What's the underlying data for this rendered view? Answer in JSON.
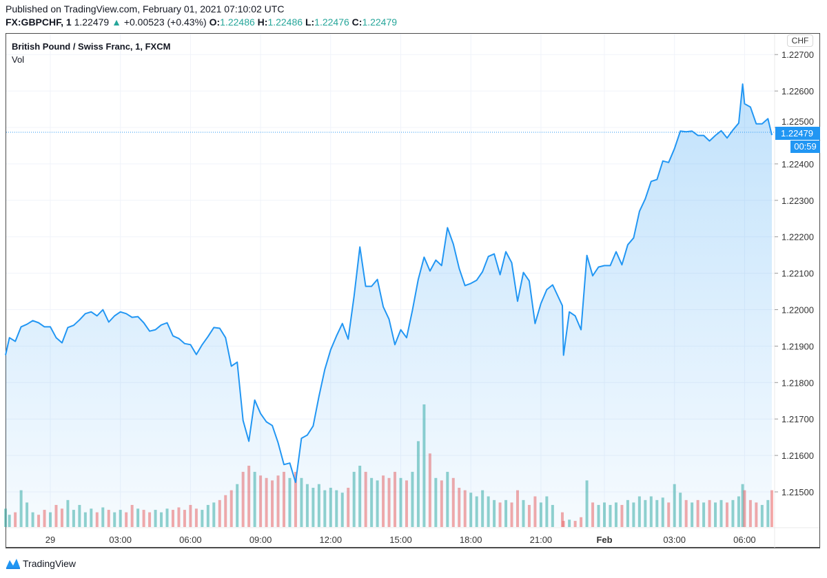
{
  "header": {
    "published": "Published on TradingView.com, February 01, 2021 07:10:02 UTC",
    "symbol": "FX:GBPCHF, 1",
    "last": "1.22479",
    "change": "+0.00523 (+0.43%)",
    "o_label": "O:",
    "o": "1.22486",
    "h_label": "H:",
    "h": "1.22486",
    "l_label": "L:",
    "l": "1.22476",
    "c_label": "C:",
    "c": "1.22479",
    "up_icon": "triangle-up-icon"
  },
  "legend": {
    "title": "British Pound / Swiss Franc, 1, FXCM",
    "volume": "Vol"
  },
  "price_axis": {
    "currency": "CHF",
    "last_price": "1.22479",
    "countdown": "00:59"
  },
  "branding": {
    "logo_text": "TradingView"
  },
  "colors": {
    "line": "#2196f3",
    "up": "#26a69a",
    "down": "#ef5350",
    "last_price_bg": "#2196f3"
  },
  "chart_data": {
    "type": "area",
    "title": "British Pound / Swiss Franc, 1, FXCM",
    "ylim": [
      1.2143,
      1.2279
    ],
    "grid": true,
    "y_ticks": [
      "1.21500",
      "1.21600",
      "1.21700",
      "1.21800",
      "1.21900",
      "1.22000",
      "1.22100",
      "1.22200",
      "1.22300",
      "1.22400",
      "1.22500",
      "1.22600",
      "1.22700"
    ],
    "x_ticks": [
      {
        "t": "2021-01-29 00:00",
        "label": "29"
      },
      {
        "t": "2021-01-29 03:00",
        "label": "03:00"
      },
      {
        "t": "2021-01-29 06:00",
        "label": "06:00"
      },
      {
        "t": "2021-01-29 09:00",
        "label": "09:00"
      },
      {
        "t": "2021-01-29 12:00",
        "label": "12:00"
      },
      {
        "t": "2021-01-29 15:00",
        "label": "15:00"
      },
      {
        "t": "2021-01-29 18:00",
        "label": "18:00"
      },
      {
        "t": "2021-01-29 21:00",
        "label": "21:00"
      },
      {
        "t": "2021-02-01 00:00",
        "label": "Feb"
      },
      {
        "t": "2021-02-01 03:00",
        "label": "03:00"
      },
      {
        "t": "2021-02-01 06:00",
        "label": "06:00"
      }
    ],
    "series": [
      {
        "points": [
          [
            "2021-01-28 22:05",
            1.21875,
            15
          ],
          [
            "2021-01-28 22:15",
            1.21923,
            10
          ],
          [
            "2021-01-28 22:30",
            1.21913,
            12
          ],
          [
            "2021-01-28 22:45",
            1.21953,
            30
          ],
          [
            "2021-01-28 23:00",
            1.2196,
            20
          ],
          [
            "2021-01-28 23:15",
            1.2197,
            12
          ],
          [
            "2021-01-28 23:30",
            1.21964,
            10
          ],
          [
            "2021-01-28 23:45",
            1.21953,
            14
          ],
          [
            "2021-01-29 00:00",
            1.21953,
            12
          ],
          [
            "2021-01-29 00:15",
            1.21923,
            18
          ],
          [
            "2021-01-29 00:30",
            1.21909,
            15
          ],
          [
            "2021-01-29 00:45",
            1.21951,
            22
          ],
          [
            "2021-01-29 01:00",
            1.21957,
            14
          ],
          [
            "2021-01-29 01:15",
            1.21972,
            18
          ],
          [
            "2021-01-29 01:30",
            1.21989,
            12
          ],
          [
            "2021-01-29 01:45",
            1.21994,
            15
          ],
          [
            "2021-01-29 02:00",
            1.21983,
            12
          ],
          [
            "2021-01-29 02:15",
            1.22,
            16
          ],
          [
            "2021-01-29 02:30",
            1.21966,
            14
          ],
          [
            "2021-01-29 02:45",
            1.21983,
            12
          ],
          [
            "2021-01-29 03:00",
            1.21994,
            14
          ],
          [
            "2021-01-29 03:15",
            1.21989,
            12
          ],
          [
            "2021-01-29 03:30",
            1.21979,
            18
          ],
          [
            "2021-01-29 03:45",
            1.21981,
            15
          ],
          [
            "2021-01-29 04:00",
            1.21964,
            14
          ],
          [
            "2021-01-29 04:15",
            1.21941,
            12
          ],
          [
            "2021-01-29 04:30",
            1.21945,
            14
          ],
          [
            "2021-01-29 04:45",
            1.21958,
            12
          ],
          [
            "2021-01-29 05:00",
            1.21964,
            15
          ],
          [
            "2021-01-29 05:15",
            1.21928,
            14
          ],
          [
            "2021-01-29 05:30",
            1.21921,
            16
          ],
          [
            "2021-01-29 05:45",
            1.21907,
            14
          ],
          [
            "2021-01-29 06:00",
            1.21904,
            18
          ],
          [
            "2021-01-29 06:15",
            1.21877,
            15
          ],
          [
            "2021-01-29 06:30",
            1.21904,
            14
          ],
          [
            "2021-01-29 06:45",
            1.21926,
            18
          ],
          [
            "2021-01-29 07:00",
            1.21951,
            20
          ],
          [
            "2021-01-29 07:15",
            1.21949,
            22
          ],
          [
            "2021-01-29 07:30",
            1.21923,
            26
          ],
          [
            "2021-01-29 07:45",
            1.21845,
            30
          ],
          [
            "2021-01-29 08:00",
            1.21856,
            35
          ],
          [
            "2021-01-29 08:15",
            1.21696,
            45
          ],
          [
            "2021-01-29 08:30",
            1.21639,
            50
          ],
          [
            "2021-01-29 08:45",
            1.21752,
            45
          ],
          [
            "2021-01-29 09:00",
            1.21715,
            42
          ],
          [
            "2021-01-29 09:15",
            1.21692,
            40
          ],
          [
            "2021-01-29 09:30",
            1.21682,
            38
          ],
          [
            "2021-01-29 09:45",
            1.21635,
            42
          ],
          [
            "2021-01-29 10:00",
            1.21575,
            45
          ],
          [
            "2021-01-29 10:15",
            1.21579,
            40
          ],
          [
            "2021-01-29 10:30",
            1.21526,
            45
          ],
          [
            "2021-01-29 10:45",
            1.21647,
            40
          ],
          [
            "2021-01-29 11:00",
            1.21656,
            35
          ],
          [
            "2021-01-29 11:15",
            1.21681,
            32
          ],
          [
            "2021-01-29 11:30",
            1.21762,
            35
          ],
          [
            "2021-01-29 11:45",
            1.21836,
            30
          ],
          [
            "2021-01-29 12:00",
            1.2189,
            32
          ],
          [
            "2021-01-29 12:15",
            1.21928,
            30
          ],
          [
            "2021-01-29 12:30",
            1.21962,
            28
          ],
          [
            "2021-01-29 12:45",
            1.21919,
            32
          ],
          [
            "2021-01-29 13:00",
            1.22036,
            45
          ],
          [
            "2021-01-29 13:15",
            1.22172,
            50
          ],
          [
            "2021-01-29 13:30",
            1.22064,
            45
          ],
          [
            "2021-01-29 13:45",
            1.22064,
            40
          ],
          [
            "2021-01-29 14:00",
            1.22083,
            38
          ],
          [
            "2021-01-29 14:15",
            1.22008,
            42
          ],
          [
            "2021-01-29 14:30",
            1.21974,
            40
          ],
          [
            "2021-01-29 14:45",
            1.21904,
            45
          ],
          [
            "2021-01-29 15:00",
            1.21945,
            40
          ],
          [
            "2021-01-29 15:15",
            1.21923,
            38
          ],
          [
            "2021-01-29 15:30",
            1.21998,
            45
          ],
          [
            "2021-01-29 15:45",
            1.22083,
            70
          ],
          [
            "2021-01-29 16:00",
            1.22144,
            100
          ],
          [
            "2021-01-29 16:15",
            1.22106,
            60
          ],
          [
            "2021-01-29 16:30",
            1.22136,
            40
          ],
          [
            "2021-01-29 16:45",
            1.22121,
            38
          ],
          [
            "2021-01-29 17:00",
            1.22225,
            45
          ],
          [
            "2021-01-29 17:15",
            1.2218,
            40
          ],
          [
            "2021-01-29 17:30",
            1.22113,
            32
          ],
          [
            "2021-01-29 17:45",
            1.22066,
            30
          ],
          [
            "2021-01-29 18:00",
            1.22072,
            28
          ],
          [
            "2021-01-29 18:15",
            1.22081,
            25
          ],
          [
            "2021-01-29 18:30",
            1.22104,
            30
          ],
          [
            "2021-01-29 18:45",
            1.22146,
            25
          ],
          [
            "2021-01-29 19:00",
            1.22153,
            22
          ],
          [
            "2021-01-29 19:15",
            1.22096,
            20
          ],
          [
            "2021-01-29 19:30",
            1.22159,
            22
          ],
          [
            "2021-01-29 19:45",
            1.22129,
            20
          ],
          [
            "2021-01-29 20:00",
            1.22023,
            30
          ],
          [
            "2021-01-29 20:15",
            1.22102,
            22
          ],
          [
            "2021-01-29 20:30",
            1.22079,
            18
          ],
          [
            "2021-01-29 20:45",
            1.21962,
            25
          ],
          [
            "2021-01-29 21:00",
            1.22017,
            20
          ],
          [
            "2021-01-29 21:15",
            1.22055,
            25
          ],
          [
            "2021-01-29 21:30",
            1.22068,
            18
          ],
          [
            "2021-01-29 21:55",
            1.22011,
            12
          ],
          [
            "2021-01-31 22:15",
            1.21875,
            5
          ],
          [
            "2021-01-31 22:30",
            1.21994,
            6
          ],
          [
            "2021-01-31 22:45",
            1.21983,
            5
          ],
          [
            "2021-01-31 23:00",
            1.21945,
            8
          ],
          [
            "2021-01-31 23:15",
            1.22149,
            38
          ],
          [
            "2021-01-31 23:30",
            1.22093,
            20
          ],
          [
            "2021-01-31 23:45",
            1.22117,
            18
          ],
          [
            "2021-02-01 00:00",
            1.22121,
            20
          ],
          [
            "2021-02-01 00:15",
            1.22121,
            18
          ],
          [
            "2021-02-01 00:30",
            1.22159,
            20
          ],
          [
            "2021-02-01 00:45",
            1.22123,
            18
          ],
          [
            "2021-02-01 01:00",
            1.22178,
            22
          ],
          [
            "2021-02-01 01:15",
            1.22197,
            20
          ],
          [
            "2021-02-01 01:30",
            1.2227,
            25
          ],
          [
            "2021-02-01 01:45",
            1.22304,
            22
          ],
          [
            "2021-02-01 02:00",
            1.22352,
            25
          ],
          [
            "2021-02-01 02:15",
            1.22357,
            22
          ],
          [
            "2021-02-01 02:30",
            1.22408,
            24
          ],
          [
            "2021-02-01 02:45",
            1.22404,
            20
          ],
          [
            "2021-02-01 03:00",
            1.22442,
            35
          ],
          [
            "2021-02-01 03:15",
            1.2249,
            28
          ],
          [
            "2021-02-01 03:30",
            1.22488,
            22
          ],
          [
            "2021-02-01 03:45",
            1.2249,
            20
          ],
          [
            "2021-02-01 04:00",
            1.22478,
            22
          ],
          [
            "2021-02-01 04:15",
            1.22478,
            20
          ],
          [
            "2021-02-01 04:30",
            1.22463,
            22
          ],
          [
            "2021-02-01 04:45",
            1.22478,
            20
          ],
          [
            "2021-02-01 05:00",
            1.22491,
            22
          ],
          [
            "2021-02-01 05:15",
            1.22471,
            20
          ],
          [
            "2021-02-01 05:30",
            1.22493,
            22
          ],
          [
            "2021-02-01 05:45",
            1.22512,
            25
          ],
          [
            "2021-02-01 05:55",
            1.22619,
            35
          ],
          [
            "2021-02-01 06:00",
            1.22565,
            30
          ],
          [
            "2021-02-01 06:15",
            1.22556,
            22
          ],
          [
            "2021-02-01 06:30",
            1.2251,
            20
          ],
          [
            "2021-02-01 06:45",
            1.2251,
            18
          ],
          [
            "2021-02-01 07:00",
            1.22524,
            22
          ],
          [
            "2021-02-01 07:10",
            1.22479,
            30
          ]
        ]
      }
    ]
  }
}
